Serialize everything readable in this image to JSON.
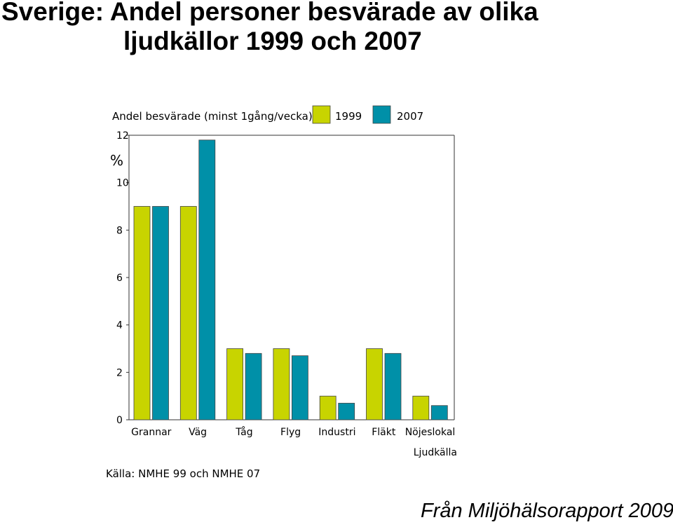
{
  "slide": {
    "title_line1": "Sverige: Andel personer besvärade av olika",
    "title_line2": "ljudkällor 1999 och 2007",
    "credit": "Från Miljöhälsorapport 2009"
  },
  "chart_data": {
    "type": "bar",
    "title": "Andel besvärade (minst 1gång/vecka)",
    "ylabel": "%",
    "xlabel": "Ljudkälla",
    "source": "Källa: NMHE 99 och NMHE 07",
    "categories": [
      "Grannar",
      "Väg",
      "Tåg",
      "Flyg",
      "Industri",
      "Fläkt",
      "Nöjeslokal"
    ],
    "series": [
      {
        "name": "1999",
        "color": "#c8d400",
        "values": [
          9,
          9,
          3,
          3,
          1,
          3,
          1
        ]
      },
      {
        "name": "2007",
        "color": "#0090a8",
        "values": [
          9,
          11.8,
          2.8,
          2.7,
          0.7,
          2.8,
          0.6
        ]
      }
    ],
    "ylim": [
      0,
      12
    ],
    "yticks": [
      0,
      2,
      4,
      6,
      8,
      10,
      12
    ],
    "grid": false,
    "legend": "top-right"
  }
}
